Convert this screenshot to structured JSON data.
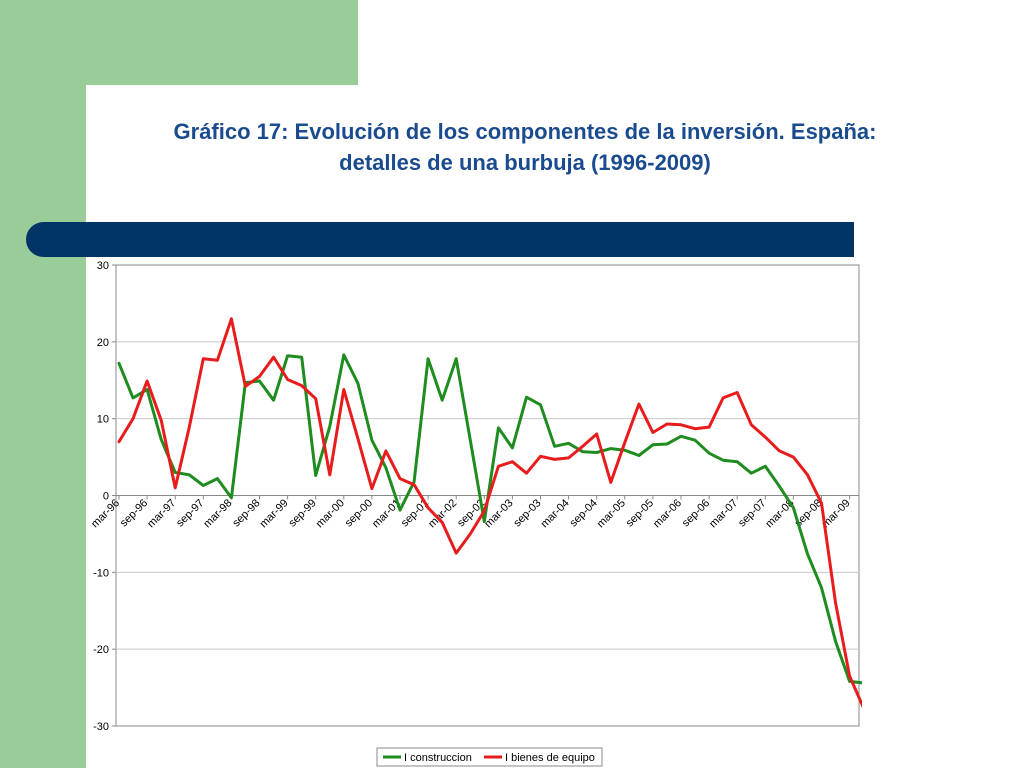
{
  "slide": {
    "title_line1": "Gráfico 17: Evolución de los componentes de la inversión. España:",
    "title_line2": "detalles de una burbuja (1996-2009)",
    "accent_green": "#99cc99",
    "bar_color": "#003366",
    "title_color": "#1b4b8f"
  },
  "chart_data": {
    "type": "line",
    "title": "",
    "xlabel": "",
    "ylabel": "",
    "ylim": [
      -30,
      30
    ],
    "yticks": [
      30,
      20,
      10,
      0,
      -10,
      -20,
      -30
    ],
    "grid": true,
    "legend_position": "bottom",
    "tick_labels": [
      "mar-96",
      "sep-96",
      "mar-97",
      "sep-97",
      "mar-98",
      "sep-98",
      "mar-99",
      "sep-99",
      "mar-00",
      "sep-00",
      "mar-01",
      "sep-01",
      "mar-02",
      "sep-02",
      "mar-03",
      "sep-03",
      "mar-04",
      "sep-04",
      "mar-05",
      "sep-05",
      "mar-06",
      "sep-06",
      "mar-07",
      "sep-07",
      "mar-08",
      "sep-08",
      "mar-09"
    ],
    "series": [
      {
        "name": "I construccion",
        "color": "#1e8c1e",
        "values": [
          17.2,
          12.7,
          13.8,
          7.3,
          3.0,
          2.7,
          1.3,
          2.2,
          -0.3,
          14.7,
          14.9,
          12.4,
          18.2,
          18.0,
          2.6,
          9.0,
          18.3,
          14.6,
          7.2,
          3.6,
          -1.9,
          1.8,
          17.8,
          12.4,
          17.8,
          7.2,
          -3.4,
          8.8,
          6.2,
          12.8,
          11.8,
          6.4,
          6.8,
          5.7,
          5.6,
          6.1,
          5.9,
          5.2,
          6.6,
          6.7,
          7.7,
          7.2,
          5.5,
          4.6,
          4.4,
          2.9,
          3.8,
          1.2,
          -1.6,
          -7.6,
          -12.0,
          -19.0,
          -24.2,
          -24.4
        ]
      },
      {
        "name": "I bienes de equipo",
        "color": "#e81c1c",
        "values": [
          7.0,
          10.0,
          14.9,
          9.8,
          1.0,
          8.9,
          17.8,
          17.6,
          23.0,
          14.2,
          15.5,
          18.0,
          15.1,
          14.3,
          12.6,
          2.7,
          13.8,
          7.4,
          0.9,
          5.8,
          2.2,
          1.4,
          -1.6,
          -3.5,
          -7.5,
          -5.0,
          -2.0,
          3.8,
          4.4,
          2.9,
          5.1,
          4.7,
          4.9,
          6.4,
          8.0,
          1.7,
          6.9,
          11.9,
          8.2,
          9.3,
          9.2,
          8.7,
          8.9,
          12.7,
          13.4,
          9.2,
          7.6,
          5.8,
          5.0,
          2.7,
          -1.0,
          -14.0,
          -23.5,
          -27.7
        ]
      }
    ]
  }
}
